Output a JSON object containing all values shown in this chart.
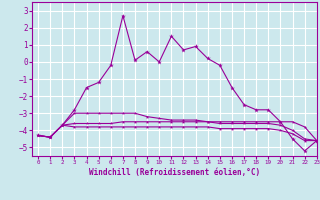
{
  "xlabel": "Windchill (Refroidissement éolien,°C)",
  "background_color": "#cce8ed",
  "grid_color": "#ffffff",
  "line_color": "#990099",
  "xlim": [
    -0.5,
    23
  ],
  "ylim": [
    -5.5,
    3.5
  ],
  "yticks": [
    -5,
    -4,
    -3,
    -2,
    -1,
    0,
    1,
    2,
    3
  ],
  "xticks": [
    0,
    1,
    2,
    3,
    4,
    5,
    6,
    7,
    8,
    9,
    10,
    11,
    12,
    13,
    14,
    15,
    16,
    17,
    18,
    19,
    20,
    21,
    22,
    23
  ],
  "hours": [
    0,
    1,
    2,
    3,
    4,
    5,
    6,
    7,
    8,
    9,
    10,
    11,
    12,
    13,
    14,
    15,
    16,
    17,
    18,
    19,
    20,
    21,
    22,
    23
  ],
  "series1": [
    -4.3,
    -4.4,
    -3.7,
    -2.8,
    -1.5,
    -1.2,
    -0.2,
    2.7,
    0.1,
    0.6,
    0.0,
    1.5,
    0.7,
    0.9,
    0.2,
    -0.2,
    -1.5,
    -2.5,
    -2.8,
    -2.8,
    -3.5,
    -4.5,
    -5.2,
    -4.6
  ],
  "series2": [
    -4.3,
    -4.4,
    -3.7,
    -3.0,
    -3.0,
    -3.0,
    -3.0,
    -3.0,
    -3.0,
    -3.2,
    -3.3,
    -3.4,
    -3.4,
    -3.4,
    -3.5,
    -3.5,
    -3.5,
    -3.5,
    -3.5,
    -3.5,
    -3.5,
    -3.5,
    -3.8,
    -4.6
  ],
  "series3": [
    -4.3,
    -4.4,
    -3.7,
    -3.6,
    -3.6,
    -3.6,
    -3.6,
    -3.5,
    -3.5,
    -3.5,
    -3.5,
    -3.5,
    -3.5,
    -3.5,
    -3.5,
    -3.6,
    -3.6,
    -3.6,
    -3.6,
    -3.6,
    -3.7,
    -4.0,
    -4.5,
    -4.6
  ],
  "series4": [
    -4.3,
    -4.4,
    -3.7,
    -3.8,
    -3.8,
    -3.8,
    -3.8,
    -3.8,
    -3.8,
    -3.8,
    -3.8,
    -3.8,
    -3.8,
    -3.8,
    -3.8,
    -3.9,
    -3.9,
    -3.9,
    -3.9,
    -3.9,
    -4.0,
    -4.2,
    -4.6,
    -4.6
  ]
}
